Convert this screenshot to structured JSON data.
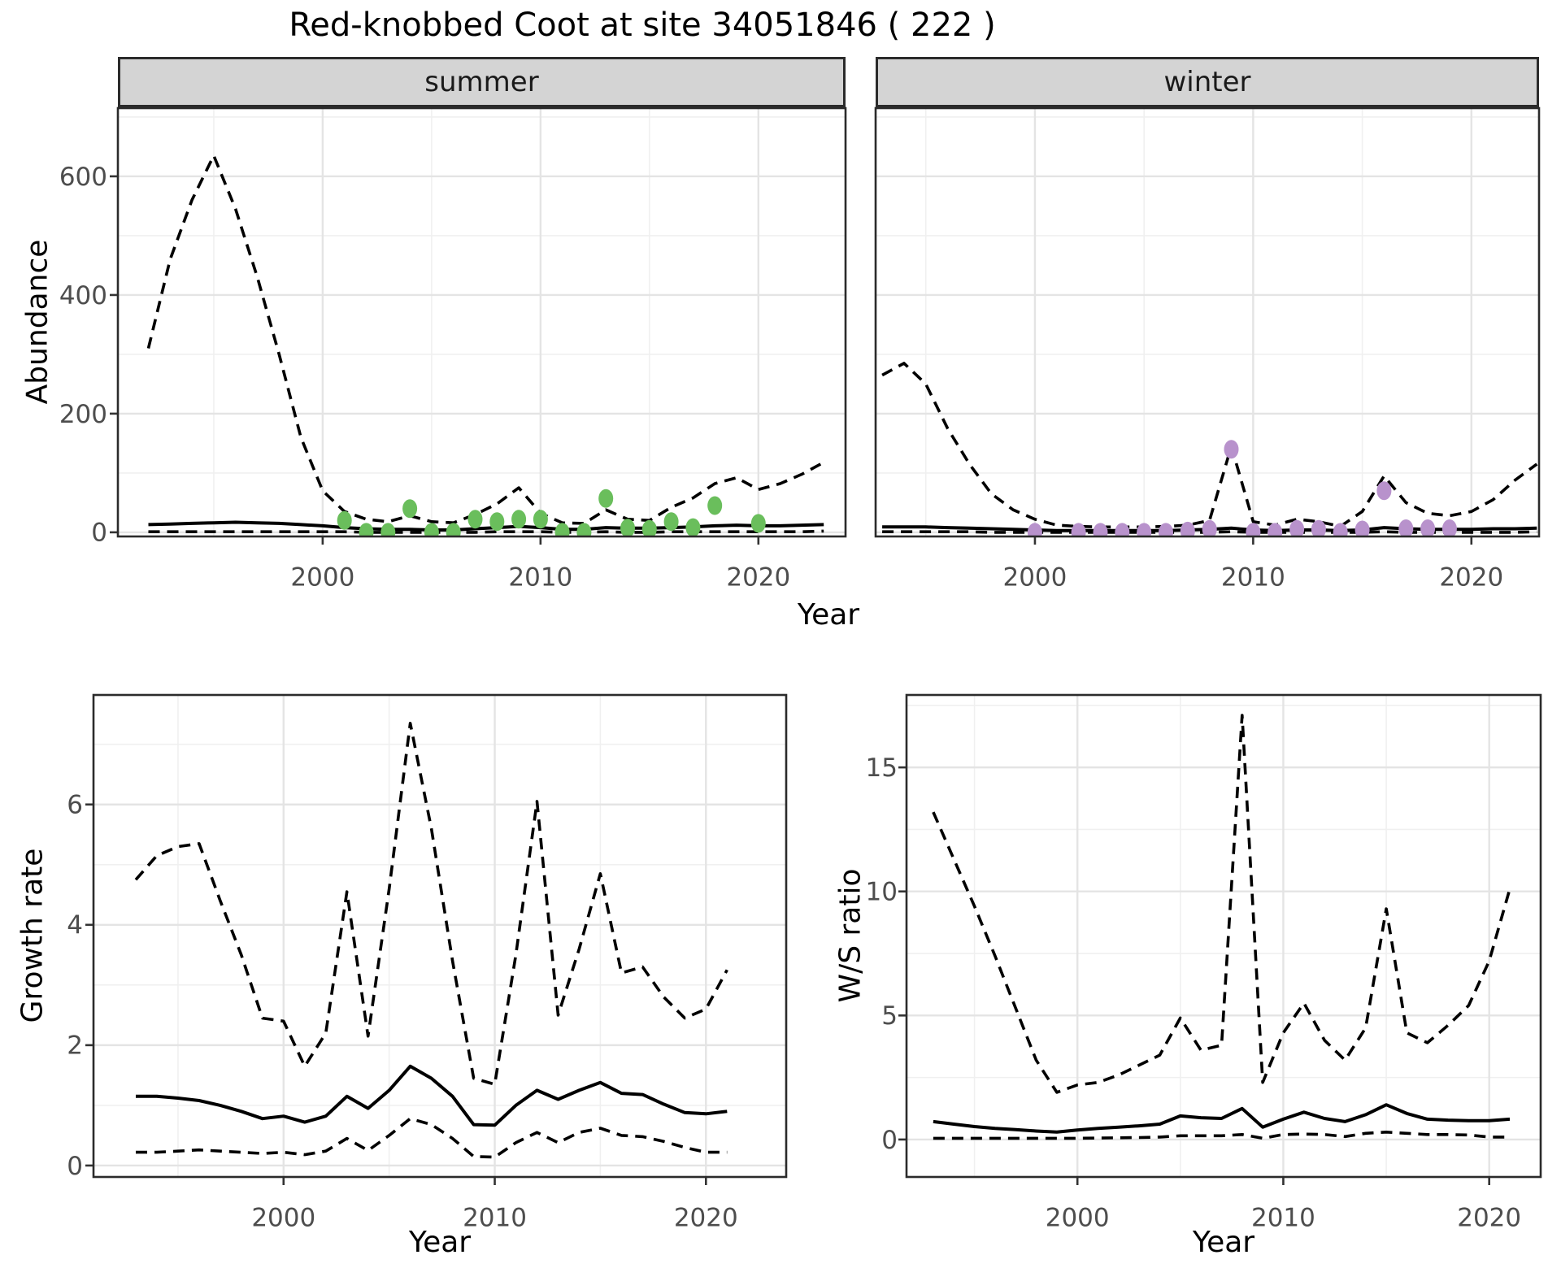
{
  "title": "Red-knobbed Coot at site 34051846 ( 222 )",
  "facets": [
    "summer",
    "winter"
  ],
  "axis_titles": {
    "abundance": "Abundance",
    "year": "Year",
    "growth": "Growth rate",
    "ws": "W/S ratio"
  },
  "colors": {
    "summer_points": "#6abe5c",
    "winter_points": "#b892cc",
    "line": "#000000",
    "axis_text": "#4d4d4d",
    "tick_mark": "#333333",
    "strip_bg": "#d4d4d4",
    "panel_border": "#2b2b2b",
    "grid_major": "#e4e4e4",
    "grid_minor": "#f0f0f0",
    "background": "#ffffff"
  },
  "chart_data": [
    {
      "type": "line",
      "name": "abundance-summer",
      "facet": "summer",
      "xlabel": "Year",
      "ylabel": "Abundance",
      "legend": "none",
      "grid": true,
      "xlim": [
        1990.6,
        2024.0
      ],
      "ylim": [
        -7,
        715
      ],
      "xticks": [
        2000,
        2010,
        2020
      ],
      "yticks": [
        0,
        200,
        400,
        600
      ],
      "x": [
        1992,
        1993,
        1994,
        1995,
        1996,
        1997,
        1998,
        1999,
        2000,
        2001,
        2002,
        2003,
        2004,
        2005,
        2006,
        2007,
        2008,
        2009,
        2010,
        2011,
        2012,
        2013,
        2014,
        2015,
        2016,
        2017,
        2018,
        2019,
        2020,
        2021,
        2022,
        2023
      ],
      "series": [
        {
          "name": "upper-ci",
          "style": "dashed",
          "values": [
            310,
            460,
            560,
            635,
            545,
            430,
            300,
            160,
            70,
            35,
            22,
            18,
            28,
            18,
            16,
            30,
            48,
            75,
            32,
            16,
            15,
            38,
            22,
            20,
            42,
            58,
            82,
            92,
            72,
            82,
            98,
            118
          ]
        },
        {
          "name": "mean",
          "style": "solid",
          "values": [
            13,
            14,
            15,
            16,
            17,
            16,
            15,
            13,
            11,
            8,
            6,
            5,
            5,
            4,
            4,
            6,
            8,
            10,
            8,
            5,
            5,
            8,
            7,
            7,
            8,
            9,
            11,
            12,
            11,
            11,
            12,
            13
          ]
        },
        {
          "name": "lower-ci",
          "style": "dashed",
          "values": [
            1,
            1,
            1,
            1,
            1,
            1,
            1,
            1,
            1,
            1,
            0,
            0,
            0,
            0,
            0,
            0,
            1,
            1,
            1,
            0,
            0,
            1,
            0,
            0,
            1,
            1,
            1,
            1,
            1,
            1,
            1,
            2
          ]
        }
      ],
      "points": {
        "name": "observed-counts-summer",
        "color_key": "summer_points",
        "x": [
          2001,
          2002,
          2003,
          2004,
          2005,
          2006,
          2007,
          2008,
          2009,
          2010,
          2011,
          2012,
          2013,
          2014,
          2015,
          2016,
          2017,
          2018,
          2020
        ],
        "values": [
          20,
          0,
          0,
          40,
          0,
          0,
          22,
          18,
          22,
          22,
          0,
          0,
          57,
          7,
          5,
          18,
          8,
          45,
          15
        ]
      }
    },
    {
      "type": "line",
      "name": "abundance-winter",
      "facet": "winter",
      "xlabel": "Year",
      "ylabel": "Abundance",
      "legend": "none",
      "grid": true,
      "xlim": [
        1992.7,
        2023.1
      ],
      "ylim": [
        -7,
        715
      ],
      "xticks": [
        2000,
        2010,
        2020
      ],
      "yticks": [
        0,
        200,
        400,
        600
      ],
      "x": [
        1993,
        1994,
        1995,
        1996,
        1997,
        1998,
        1999,
        2000,
        2001,
        2002,
        2003,
        2004,
        2005,
        2006,
        2007,
        2008,
        2009,
        2010,
        2011,
        2012,
        2013,
        2014,
        2015,
        2016,
        2017,
        2018,
        2019,
        2020,
        2021,
        2022,
        2023
      ],
      "series": [
        {
          "name": "upper-ci",
          "style": "dashed",
          "values": [
            265,
            285,
            250,
            175,
            115,
            65,
            38,
            22,
            12,
            10,
            9,
            9,
            9,
            10,
            12,
            20,
            145,
            18,
            12,
            22,
            18,
            10,
            35,
            95,
            50,
            32,
            28,
            35,
            55,
            88,
            115
          ]
        },
        {
          "name": "mean",
          "style": "solid",
          "values": [
            9,
            9,
            9,
            8,
            7,
            6,
            5,
            4,
            3,
            3,
            3,
            3,
            3,
            3,
            4,
            5,
            7,
            4,
            3,
            4,
            4,
            3,
            4,
            8,
            6,
            5,
            5,
            5,
            6,
            6,
            7
          ]
        },
        {
          "name": "lower-ci",
          "style": "dashed",
          "values": [
            1,
            1,
            1,
            1,
            1,
            0,
            0,
            0,
            0,
            0,
            0,
            0,
            0,
            0,
            0,
            0,
            1,
            0,
            0,
            0,
            0,
            0,
            0,
            1,
            0,
            0,
            0,
            0,
            0,
            0,
            1
          ]
        }
      ],
      "points": {
        "name": "observed-counts-winter",
        "color_key": "winter_points",
        "x": [
          2000,
          2002,
          2003,
          2004,
          2005,
          2006,
          2007,
          2008,
          2009,
          2010,
          2011,
          2012,
          2013,
          2014,
          2015,
          2016,
          2017,
          2018,
          2019
        ],
        "values": [
          0,
          0,
          0,
          0,
          0,
          0,
          2,
          5,
          140,
          0,
          0,
          5,
          5,
          0,
          4,
          70,
          6,
          6,
          6
        ]
      }
    },
    {
      "type": "line",
      "name": "growth-rate",
      "facet": "",
      "xlabel": "Year",
      "ylabel": "Growth rate",
      "legend": "none",
      "grid": true,
      "xlim": [
        1991.0,
        2023.8
      ],
      "ylim": [
        -0.19,
        7.82
      ],
      "xticks": [
        2000,
        2010,
        2020
      ],
      "yticks": [
        0,
        2,
        4,
        6
      ],
      "x": [
        1993,
        1994,
        1995,
        1996,
        1997,
        1998,
        1999,
        2000,
        2001,
        2002,
        2003,
        2004,
        2005,
        2006,
        2007,
        2008,
        2009,
        2010,
        2011,
        2012,
        2013,
        2014,
        2015,
        2016,
        2017,
        2018,
        2019,
        2020,
        2021
      ],
      "series": [
        {
          "name": "upper-ci",
          "style": "dashed",
          "values": [
            4.75,
            5.15,
            5.3,
            5.35,
            4.4,
            3.5,
            2.45,
            2.4,
            1.65,
            2.2,
            4.55,
            2.15,
            4.6,
            7.35,
            5.6,
            3.4,
            1.45,
            1.35,
            3.5,
            6.05,
            2.5,
            3.6,
            4.85,
            3.2,
            3.3,
            2.8,
            2.45,
            2.6,
            3.25
          ]
        },
        {
          "name": "mean",
          "style": "solid",
          "values": [
            1.15,
            1.15,
            1.12,
            1.08,
            1.0,
            0.9,
            0.78,
            0.82,
            0.72,
            0.82,
            1.15,
            0.95,
            1.25,
            1.65,
            1.45,
            1.15,
            0.68,
            0.67,
            1.0,
            1.25,
            1.1,
            1.25,
            1.38,
            1.2,
            1.18,
            1.02,
            0.88,
            0.86,
            0.9
          ]
        },
        {
          "name": "lower-ci",
          "style": "dashed",
          "values": [
            0.22,
            0.22,
            0.24,
            0.26,
            0.24,
            0.22,
            0.2,
            0.22,
            0.18,
            0.24,
            0.45,
            0.25,
            0.5,
            0.78,
            0.68,
            0.45,
            0.15,
            0.14,
            0.38,
            0.55,
            0.38,
            0.55,
            0.62,
            0.5,
            0.48,
            0.4,
            0.3,
            0.22,
            0.22
          ]
        }
      ],
      "points": null
    },
    {
      "type": "line",
      "name": "ws-ratio",
      "facet": "",
      "xlabel": "Year",
      "ylabel": "W/S ratio",
      "legend": "none",
      "grid": true,
      "xlim": [
        1991.7,
        2022.5
      ],
      "ylim": [
        -1.51,
        17.92
      ],
      "xticks": [
        2000,
        2010,
        2020
      ],
      "yticks": [
        0,
        5,
        10,
        15
      ],
      "x": [
        1993,
        1994,
        1995,
        1996,
        1997,
        1998,
        1999,
        2000,
        2001,
        2002,
        2003,
        2004,
        2005,
        2006,
        2007,
        2008,
        2009,
        2010,
        2011,
        2012,
        2013,
        2014,
        2015,
        2016,
        2017,
        2018,
        2019,
        2020,
        2021
      ],
      "series": [
        {
          "name": "upper-ci",
          "style": "dashed",
          "values": [
            13.2,
            11.3,
            9.4,
            7.4,
            5.3,
            3.2,
            1.9,
            2.2,
            2.3,
            2.6,
            3.0,
            3.4,
            4.9,
            3.6,
            3.8,
            17.1,
            2.3,
            4.3,
            5.5,
            4.0,
            3.2,
            4.5,
            9.3,
            4.3,
            3.9,
            4.6,
            5.4,
            7.2,
            10.1
          ]
        },
        {
          "name": "mean",
          "style": "solid",
          "values": [
            0.72,
            0.62,
            0.52,
            0.45,
            0.4,
            0.34,
            0.3,
            0.38,
            0.45,
            0.5,
            0.55,
            0.62,
            0.95,
            0.88,
            0.85,
            1.25,
            0.5,
            0.82,
            1.1,
            0.85,
            0.72,
            1.0,
            1.4,
            1.05,
            0.82,
            0.78,
            0.76,
            0.76,
            0.82
          ]
        },
        {
          "name": "lower-ci",
          "style": "dashed",
          "values": [
            0.05,
            0.05,
            0.05,
            0.05,
            0.05,
            0.05,
            0.05,
            0.05,
            0.06,
            0.07,
            0.08,
            0.1,
            0.15,
            0.15,
            0.15,
            0.2,
            0.05,
            0.2,
            0.22,
            0.2,
            0.12,
            0.25,
            0.3,
            0.25,
            0.2,
            0.2,
            0.18,
            0.1,
            0.1
          ]
        }
      ],
      "points": null
    }
  ]
}
